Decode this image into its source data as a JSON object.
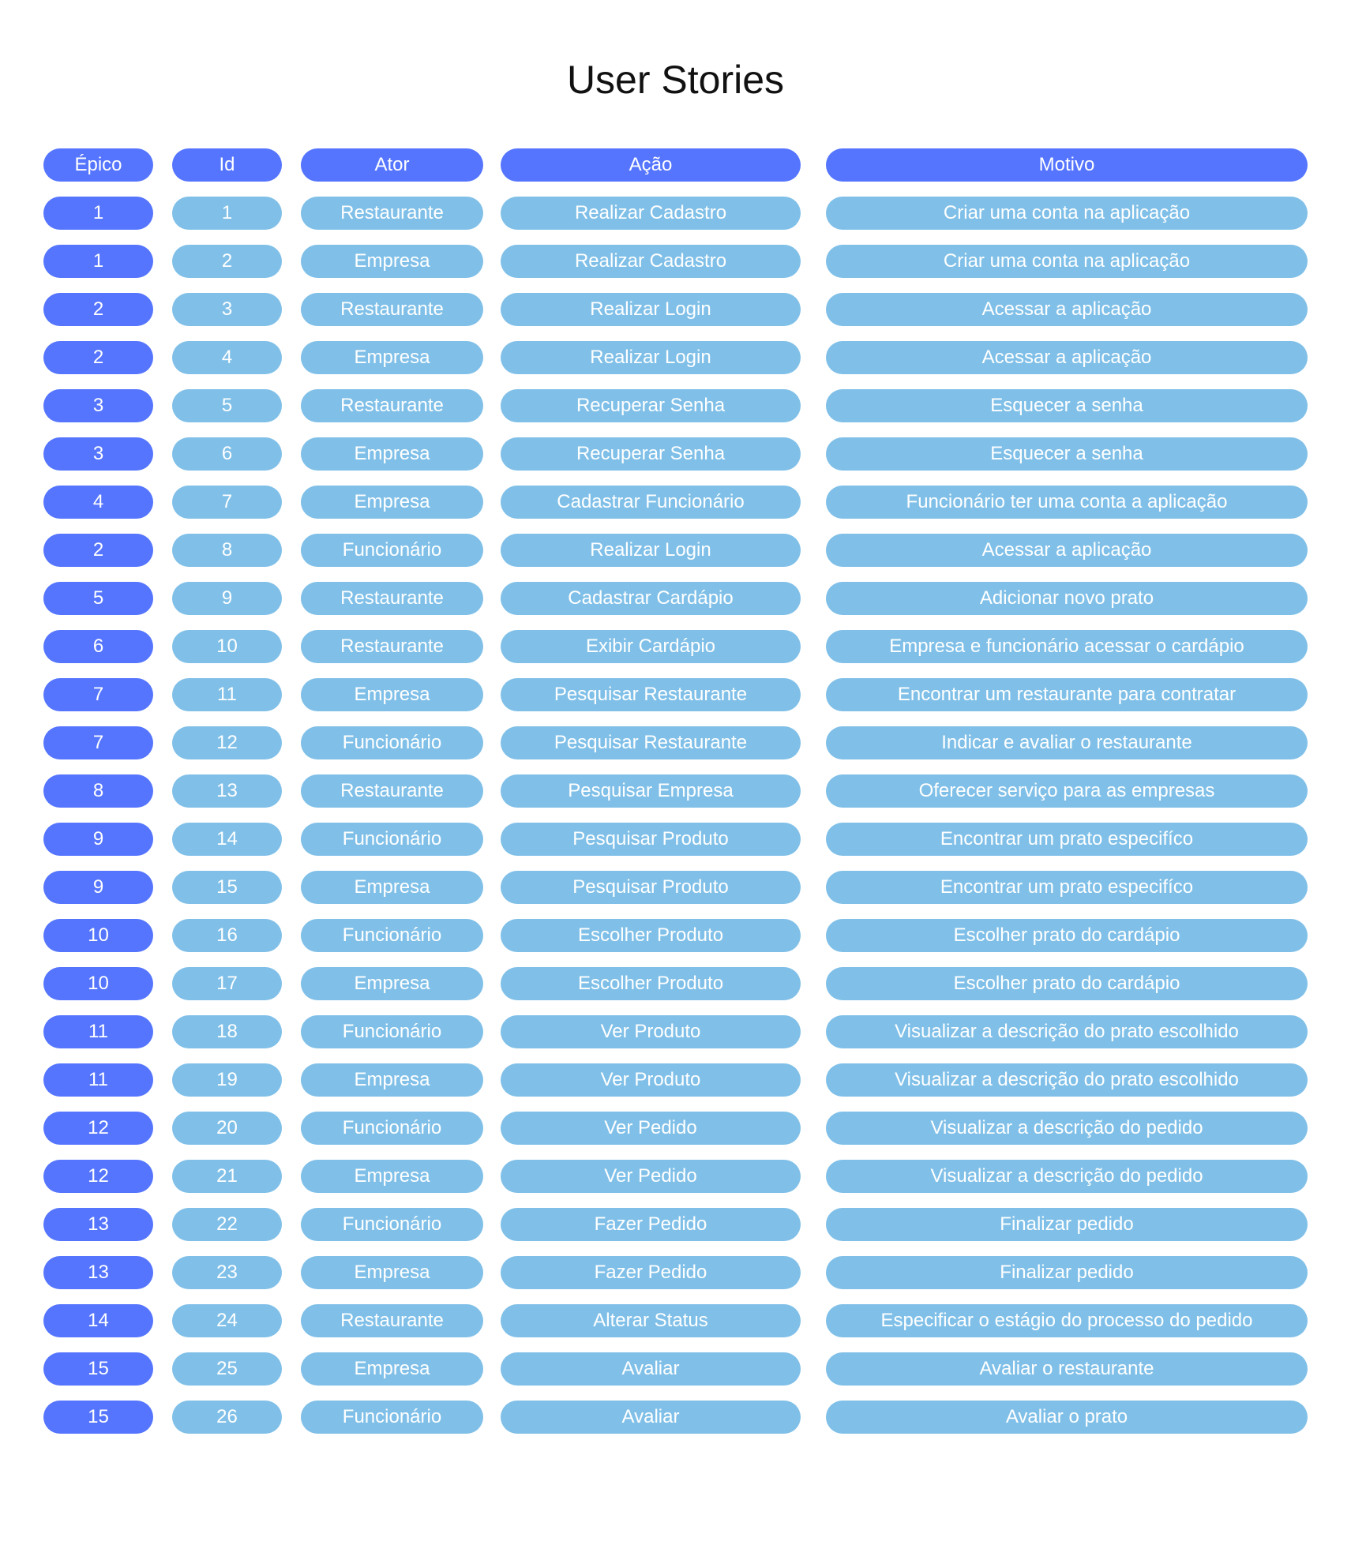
{
  "title": "User Stories",
  "colors": {
    "header": "#5575ff",
    "epic_cell": "#5575ff",
    "other_cell": "#80c0e8",
    "text": "#ffffff",
    "title_text": "#111111"
  },
  "columns": [
    "Épico",
    "Id",
    "Ator",
    "Ação",
    "Motivo"
  ],
  "rows": [
    {
      "epico": "1",
      "id": "1",
      "ator": "Restaurante",
      "acao": "Realizar Cadastro",
      "motivo": "Criar uma conta na aplicação"
    },
    {
      "epico": "1",
      "id": "2",
      "ator": "Empresa",
      "acao": "Realizar Cadastro",
      "motivo": "Criar uma conta na aplicação"
    },
    {
      "epico": "2",
      "id": "3",
      "ator": "Restaurante",
      "acao": "Realizar Login",
      "motivo": "Acessar a aplicação"
    },
    {
      "epico": "2",
      "id": "4",
      "ator": "Empresa",
      "acao": "Realizar Login",
      "motivo": "Acessar a aplicação"
    },
    {
      "epico": "3",
      "id": "5",
      "ator": "Restaurante",
      "acao": "Recuperar Senha",
      "motivo": "Esquecer a senha"
    },
    {
      "epico": "3",
      "id": "6",
      "ator": "Empresa",
      "acao": "Recuperar Senha",
      "motivo": "Esquecer a senha"
    },
    {
      "epico": "4",
      "id": "7",
      "ator": "Empresa",
      "acao": "Cadastrar Funcionário",
      "motivo": "Funcionário ter uma conta a aplicação"
    },
    {
      "epico": "2",
      "id": "8",
      "ator": "Funcionário",
      "acao": "Realizar Login",
      "motivo": "Acessar a aplicação"
    },
    {
      "epico": "5",
      "id": "9",
      "ator": "Restaurante",
      "acao": "Cadastrar Cardápio",
      "motivo": "Adicionar novo prato"
    },
    {
      "epico": "6",
      "id": "10",
      "ator": "Restaurante",
      "acao": "Exibir Cardápio",
      "motivo": "Empresa e funcionário acessar o cardápio"
    },
    {
      "epico": "7",
      "id": "11",
      "ator": "Empresa",
      "acao": "Pesquisar Restaurante",
      "motivo": "Encontrar um restaurante para contratar"
    },
    {
      "epico": "7",
      "id": "12",
      "ator": "Funcionário",
      "acao": "Pesquisar Restaurante",
      "motivo": "Indicar e avaliar o restaurante"
    },
    {
      "epico": "8",
      "id": "13",
      "ator": "Restaurante",
      "acao": "Pesquisar Empresa",
      "motivo": "Oferecer serviço para as empresas"
    },
    {
      "epico": "9",
      "id": "14",
      "ator": "Funcionário",
      "acao": "Pesquisar Produto",
      "motivo": "Encontrar um prato especifíco"
    },
    {
      "epico": "9",
      "id": "15",
      "ator": "Empresa",
      "acao": "Pesquisar Produto",
      "motivo": "Encontrar um prato especifíco"
    },
    {
      "epico": "10",
      "id": "16",
      "ator": "Funcionário",
      "acao": "Escolher Produto",
      "motivo": "Escolher prato do cardápio"
    },
    {
      "epico": "10",
      "id": "17",
      "ator": "Empresa",
      "acao": "Escolher Produto",
      "motivo": "Escolher prato do cardápio"
    },
    {
      "epico": "11",
      "id": "18",
      "ator": "Funcionário",
      "acao": "Ver Produto",
      "motivo": "Visualizar a descrição do prato escolhido"
    },
    {
      "epico": "11",
      "id": "19",
      "ator": "Empresa",
      "acao": "Ver Produto",
      "motivo": "Visualizar a descrição do prato escolhido"
    },
    {
      "epico": "12",
      "id": "20",
      "ator": "Funcionário",
      "acao": "Ver Pedido",
      "motivo": "Visualizar a descrição do pedido"
    },
    {
      "epico": "12",
      "id": "21",
      "ator": "Empresa",
      "acao": "Ver Pedido",
      "motivo": "Visualizar a descrição do pedido"
    },
    {
      "epico": "13",
      "id": "22",
      "ator": "Funcionário",
      "acao": "Fazer Pedido",
      "motivo": "Finalizar pedido"
    },
    {
      "epico": "13",
      "id": "23",
      "ator": "Empresa",
      "acao": "Fazer Pedido",
      "motivo": "Finalizar pedido"
    },
    {
      "epico": "14",
      "id": "24",
      "ator": "Restaurante",
      "acao": "Alterar Status",
      "motivo": "Especificar o estágio do processo do pedido"
    },
    {
      "epico": "15",
      "id": "25",
      "ator": "Empresa",
      "acao": "Avaliar",
      "motivo": "Avaliar o restaurante"
    },
    {
      "epico": "15",
      "id": "26",
      "ator": "Funcionário",
      "acao": "Avaliar",
      "motivo": "Avaliar o prato"
    }
  ]
}
